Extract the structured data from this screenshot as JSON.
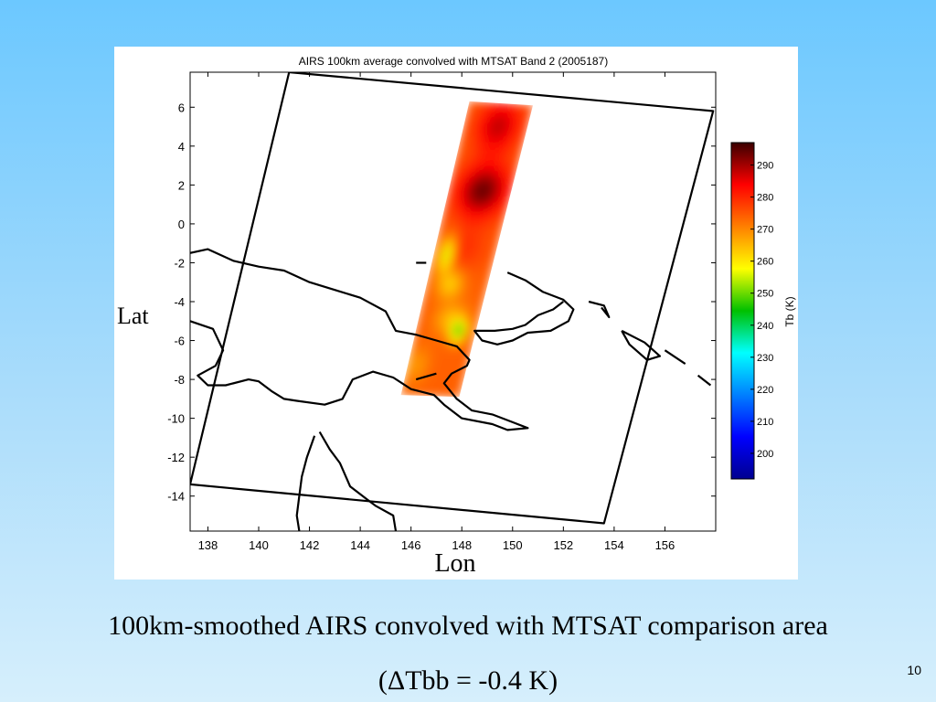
{
  "slide": {
    "caption_line1": "100km-smoothed AIRS convolved with MTSAT comparison area",
    "caption_line2": "(ΔTbb = -0.4 K)",
    "page_number": "10",
    "background_top": "#6cc8ff",
    "background_bottom": "#d6effc"
  },
  "chart_data": {
    "type": "heatmap",
    "title": "AIRS 100km average convolved with MTSAT Band 2  (2005187)",
    "xlabel": "Lon",
    "ylabel": "Lat",
    "xlim": [
      137.3,
      158.0
    ],
    "ylim": [
      -15.8,
      7.8
    ],
    "x_ticks": [
      138,
      140,
      142,
      144,
      146,
      148,
      150,
      152,
      154,
      156
    ],
    "y_ticks": [
      6,
      4,
      2,
      0,
      -2,
      -4,
      -6,
      -8,
      -10,
      -12,
      -14
    ],
    "colorbar": {
      "label": "Tb (K)",
      "range": [
        192,
        297
      ],
      "ticks": [
        200,
        210,
        220,
        230,
        240,
        250,
        260,
        270,
        280,
        290
      ]
    },
    "frame_corners": [
      [
        141.2,
        7.8
      ],
      [
        157.9,
        5.8
      ],
      [
        153.6,
        -15.4
      ],
      [
        137.3,
        -13.4
      ]
    ],
    "swath_corners": [
      [
        148.3,
        6.3
      ],
      [
        150.8,
        6.1
      ],
      [
        147.9,
        -8.9
      ],
      [
        145.6,
        -8.8
      ]
    ],
    "coastline_segments": [
      [
        [
          137.3,
          -1.5
        ],
        [
          138.0,
          -1.3
        ],
        [
          139.0,
          -1.9
        ],
        [
          140.0,
          -2.2
        ],
        [
          141.0,
          -2.4
        ],
        [
          142.0,
          -3.0
        ],
        [
          143.0,
          -3.4
        ],
        [
          144.0,
          -3.8
        ],
        [
          145.0,
          -4.5
        ],
        [
          145.4,
          -5.5
        ],
        [
          146.2,
          -5.7
        ],
        [
          147.0,
          -6.0
        ],
        [
          147.8,
          -6.3
        ],
        [
          148.3,
          -7.0
        ],
        [
          148.2,
          -7.3
        ],
        [
          147.6,
          -7.7
        ],
        [
          147.3,
          -8.2
        ],
        [
          147.8,
          -9.0
        ],
        [
          148.4,
          -9.6
        ],
        [
          149.2,
          -9.8
        ],
        [
          150.0,
          -10.2
        ],
        [
          150.6,
          -10.5
        ],
        [
          149.8,
          -10.6
        ],
        [
          149.2,
          -10.3
        ],
        [
          148.0,
          -10.0
        ],
        [
          147.3,
          -9.3
        ],
        [
          146.9,
          -8.8
        ],
        [
          146.0,
          -8.5
        ],
        [
          145.3,
          -7.9
        ],
        [
          144.5,
          -7.6
        ],
        [
          143.7,
          -8.0
        ],
        [
          143.3,
          -9.0
        ],
        [
          142.6,
          -9.3
        ],
        [
          141.5,
          -9.1
        ],
        [
          141.0,
          -9.0
        ],
        [
          140.5,
          -8.6
        ],
        [
          140.0,
          -8.1
        ],
        [
          139.6,
          -8.0
        ],
        [
          138.7,
          -8.3
        ],
        [
          138.0,
          -8.3
        ],
        [
          137.6,
          -7.8
        ],
        [
          138.3,
          -7.3
        ],
        [
          138.6,
          -6.5
        ],
        [
          138.2,
          -5.4
        ],
        [
          137.3,
          -5.0
        ]
      ],
      [
        [
          149.8,
          -2.5
        ],
        [
          150.5,
          -2.9
        ],
        [
          151.2,
          -3.5
        ],
        [
          152.0,
          -3.9
        ],
        [
          152.4,
          -4.4
        ],
        [
          152.2,
          -5.0
        ],
        [
          151.5,
          -5.5
        ],
        [
          150.6,
          -5.6
        ],
        [
          150.0,
          -6.0
        ],
        [
          149.4,
          -6.2
        ],
        [
          148.8,
          -6.0
        ],
        [
          148.5,
          -5.5
        ],
        [
          149.3,
          -5.5
        ],
        [
          150.0,
          -5.4
        ],
        [
          150.5,
          -5.2
        ],
        [
          151.0,
          -4.7
        ],
        [
          151.6,
          -4.4
        ],
        [
          152.0,
          -4.0
        ]
      ],
      [
        [
          153.0,
          -4.0
        ],
        [
          153.6,
          -4.2
        ],
        [
          153.8,
          -4.8
        ],
        [
          153.5,
          -4.3
        ]
      ],
      [
        [
          154.3,
          -5.5
        ],
        [
          155.2,
          -6.1
        ],
        [
          155.8,
          -6.8
        ],
        [
          155.3,
          -7.0
        ],
        [
          154.6,
          -6.2
        ],
        [
          154.3,
          -5.5
        ]
      ],
      [
        [
          156.0,
          -6.5
        ],
        [
          156.8,
          -7.2
        ]
      ],
      [
        [
          157.3,
          -7.8
        ],
        [
          157.8,
          -8.3
        ]
      ],
      [
        [
          142.4,
          -10.7
        ],
        [
          142.8,
          -11.6
        ],
        [
          143.2,
          -12.3
        ],
        [
          143.6,
          -13.5
        ],
        [
          144.3,
          -14.2
        ],
        [
          144.6,
          -14.5
        ],
        [
          145.3,
          -15.0
        ],
        [
          145.4,
          -15.8
        ]
      ],
      [
        [
          142.2,
          -10.9
        ],
        [
          141.9,
          -12.0
        ],
        [
          141.7,
          -13.0
        ],
        [
          141.6,
          -14.0
        ],
        [
          141.5,
          -15.0
        ],
        [
          141.6,
          -15.8
        ]
      ],
      [
        [
          146.2,
          -8.0
        ],
        [
          147.0,
          -7.7
        ]
      ],
      [
        [
          146.2,
          -2.0
        ],
        [
          146.6,
          -2.0
        ]
      ]
    ]
  }
}
